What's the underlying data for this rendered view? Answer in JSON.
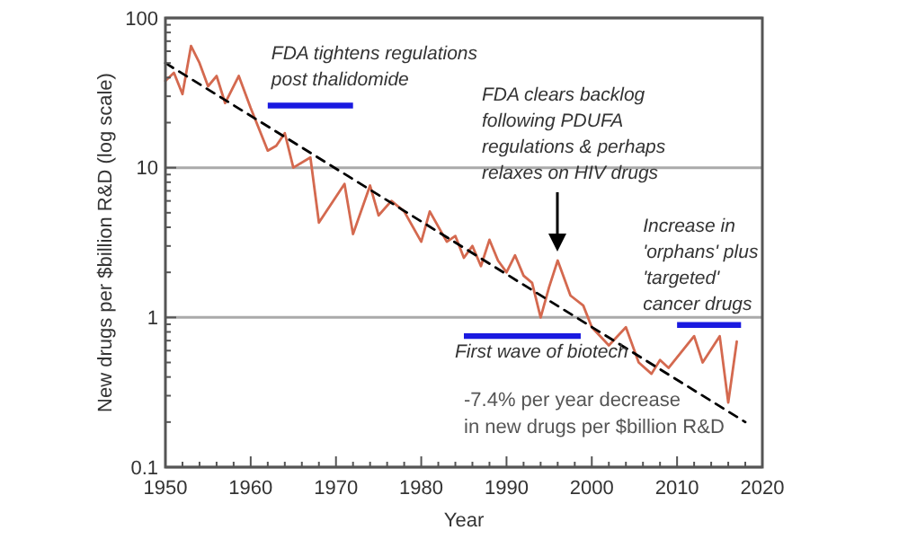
{
  "chart_data": {
    "type": "line",
    "xlabel": "Year",
    "ylabel": "New drugs per $billion R&D (log scale)",
    "log": "y",
    "grid": "y",
    "xlim": [
      1950,
      2020
    ],
    "xticks": [
      1950,
      1960,
      1970,
      1980,
      1990,
      2000,
      2010,
      2020
    ],
    "ylim": [
      0.1,
      100
    ],
    "yticks": [
      0.1,
      1,
      10,
      100
    ],
    "series": [
      {
        "color": "#d4694f",
        "x": [
          1950,
          1951,
          1952,
          1953,
          1954,
          1955,
          1956,
          1957,
          1958.6,
          1960,
          1962,
          1963,
          1964,
          1965,
          1967,
          1968,
          1971,
          1972,
          1974,
          1975,
          1976.5,
          1978,
          1980,
          1981,
          1983,
          1984,
          1985,
          1986,
          1987,
          1988,
          1989,
          1990,
          1991,
          1992,
          1993,
          1994,
          1995,
          1996,
          1997.5,
          1999,
          2000,
          2002,
          2004,
          2005.5,
          2007,
          2008,
          2009,
          2012,
          2013,
          2015,
          2016,
          2017
        ],
        "values": [
          38,
          43,
          31,
          65,
          50,
          35,
          41,
          27,
          41,
          25,
          13,
          14,
          17,
          10,
          11.7,
          4.3,
          7.8,
          3.6,
          7.6,
          4.8,
          6,
          5.1,
          3.2,
          5.1,
          3.2,
          3.5,
          2.5,
          3,
          2.2,
          3.3,
          2.4,
          2,
          2.6,
          1.9,
          1.7,
          1,
          1.6,
          2.4,
          1.4,
          1.2,
          0.86,
          0.65,
          0.86,
          0.5,
          0.42,
          0.52,
          0.46,
          0.75,
          0.5,
          0.75,
          0.27,
          0.69
        ]
      },
      {
        "color": "#000000",
        "line_style": "dashed",
        "x": [
          1950,
          2018
        ],
        "values": [
          50,
          0.2
        ]
      },
      {
        "color": "#1a1ae0",
        "x": [
          1962,
          1972
        ],
        "values": [
          26,
          26
        ]
      },
      {
        "color": "#1a1ae0",
        "x": [
          1985,
          1998.7
        ],
        "values": [
          0.75,
          0.75
        ]
      },
      {
        "color": "#1a1ae0",
        "x": [
          2010,
          2017.5
        ],
        "values": [
          0.89,
          0.89
        ]
      }
    ],
    "annotations": [
      {
        "text": "FDA tightens regulations\npost thalidomide",
        "x": 1962,
        "y": 26
      },
      "FDA clears backlog\nfollowing PDUFA\nregulations & perhaps\nrelaxes on HIV drugs",
      {
        "text": "Increase in\n'orphans' plus\n'targeted'\ncancer drugs",
        "x": 2010,
        "y": 0.89
      },
      {
        "text": "First wave of biotech",
        "x": 1985,
        "y": 0.75
      },
      "-7.4% per year decrease\nin new drugs per $billion R&D"
    ]
  }
}
